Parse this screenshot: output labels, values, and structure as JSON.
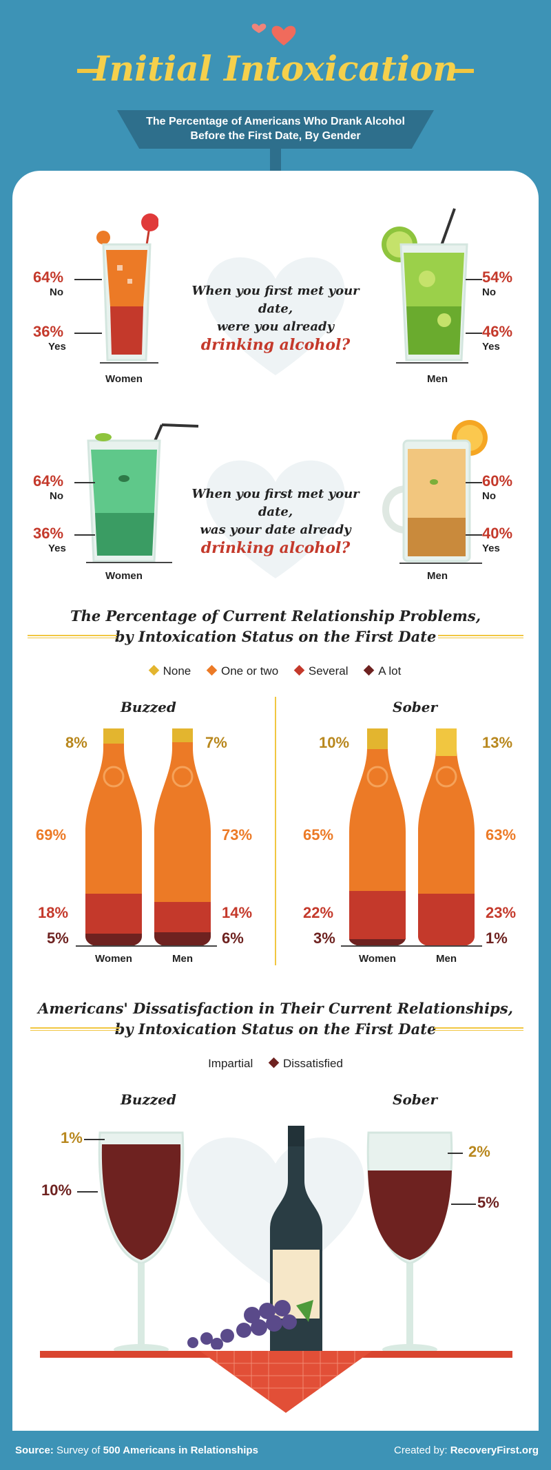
{
  "header": {
    "title": "Initial Intoxication",
    "subtitle_line1": "The Percentage of Americans Who Drank Alcohol",
    "subtitle_line2": "Before the First Date, By Gender"
  },
  "q1": {
    "question_line1": "When you first met your date,",
    "question_line2": "were you already",
    "question_highlight": "drinking alcohol?",
    "women": {
      "label": "Women",
      "no_pct": "64%",
      "no_label": "No",
      "yes_pct": "36%",
      "yes_label": "Yes",
      "yes_value": 36
    },
    "men": {
      "label": "Men",
      "no_pct": "54%",
      "no_label": "No",
      "yes_pct": "46%",
      "yes_label": "Yes",
      "yes_value": 46
    }
  },
  "q2": {
    "question_line1": "When you first met your date,",
    "question_line2": "was your date already",
    "question_highlight": "drinking alcohol?",
    "women": {
      "label": "Women",
      "no_pct": "64%",
      "no_label": "No",
      "yes_pct": "36%",
      "yes_label": "Yes",
      "yes_value": 36
    },
    "men": {
      "label": "Men",
      "no_pct": "60%",
      "no_label": "No",
      "yes_pct": "40%",
      "yes_label": "Yes",
      "yes_value": 40
    }
  },
  "problems": {
    "title_line1": "The Percentage of Current Relationship Problems,",
    "title_line2": "by Intoxication Status on the First Date",
    "legend": [
      {
        "label": "None",
        "color": "#e3b52f"
      },
      {
        "label": "One or two",
        "color": "#ec7a26"
      },
      {
        "label": "Several",
        "color": "#c4392b"
      },
      {
        "label": "A lot",
        "color": "#6e2220"
      }
    ],
    "buzzed": {
      "label": "Buzzed",
      "women": {
        "label": "Women",
        "none": "8%",
        "one_or_two": "69%",
        "several": "18%",
        "a_lot": "5%"
      },
      "men": {
        "label": "Men",
        "none": "7%",
        "one_or_two": "73%",
        "several": "14%",
        "a_lot": "6%"
      }
    },
    "sober": {
      "label": "Sober",
      "women": {
        "label": "Women",
        "none": "10%",
        "one_or_two": "65%",
        "several": "22%",
        "a_lot": "3%"
      },
      "men": {
        "label": "Men",
        "none": "13%",
        "one_or_two": "63%",
        "several": "23%",
        "a_lot": "1%"
      }
    }
  },
  "dissatisfaction": {
    "title_line1": "Americans' Dissatisfaction in Their Current Relationships,",
    "title_line2": "by Intoxication Status on the First Date",
    "legend": [
      {
        "label": "Impartial",
        "color": "#f1c640"
      },
      {
        "label": "Dissatisfied",
        "color": "#6e2220"
      }
    ],
    "buzzed": {
      "label": "Buzzed",
      "impartial": "1%",
      "dissatisfied": "10%"
    },
    "sober": {
      "label": "Sober",
      "impartial": "2%",
      "dissatisfied": "5%"
    }
  },
  "footer": {
    "source_prefix": "Source:",
    "source_text": " Survey of ",
    "source_bold": "500 Americans in Relationships",
    "created_prefix": "Created by: ",
    "created_bold": "RecoveryFirst.org"
  },
  "colors": {
    "background": "#3d93b6",
    "title_gold": "#f5d04c",
    "accent_red": "#c4392b",
    "beer_orange": "#ec7a26",
    "wine": "#6e2220"
  }
}
